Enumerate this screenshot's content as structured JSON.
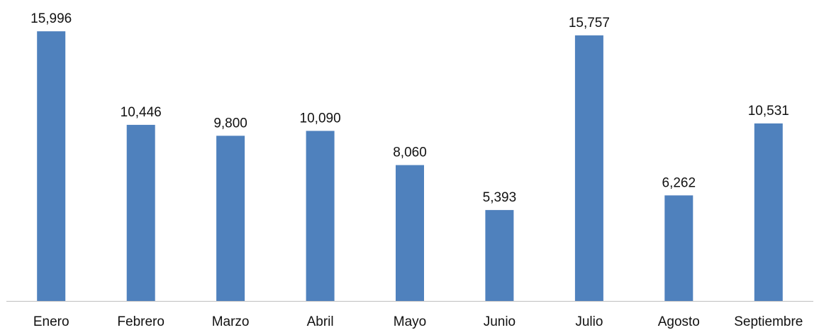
{
  "chart_data": {
    "type": "bar",
    "title": "",
    "xlabel": "",
    "ylabel": "",
    "categories": [
      "Enero",
      "Febrero",
      "Marzo",
      "Abril",
      "Mayo",
      "Junio",
      "Julio",
      "Agosto",
      "Septiembre"
    ],
    "values": [
      15996,
      10446,
      9800,
      10090,
      8060,
      5393,
      15757,
      6262,
      10531
    ],
    "value_labels": [
      "15,996",
      "10,446",
      "9,800",
      "10,090",
      "8,060",
      "5,393",
      "15,757",
      "6,262",
      "10,531"
    ],
    "ylim": [
      0,
      16000
    ],
    "grid": false,
    "legend": "none",
    "colors": {
      "bar": "#4f81bd",
      "axis": "#bfbfbf"
    }
  }
}
